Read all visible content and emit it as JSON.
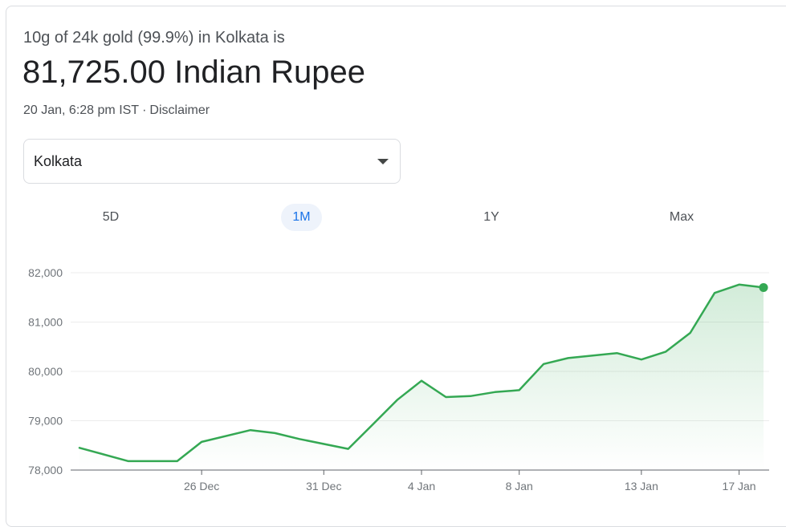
{
  "header": {
    "subtitle": "10g of 24k gold (99.9%) in Kolkata is",
    "price": "81,725.00 Indian Rupee",
    "timestamp": "20 Jan, 6:28 pm IST",
    "separator": "·",
    "disclaimer": "Disclaimer"
  },
  "location_select": {
    "value": "Kolkata"
  },
  "range_tabs": [
    {
      "label": "5D",
      "active": false
    },
    {
      "label": "1M",
      "active": true
    },
    {
      "label": "1Y",
      "active": false
    },
    {
      "label": "Max",
      "active": false
    }
  ],
  "colors": {
    "line": "#34a853",
    "accent": "#1a73e8",
    "grid": "#ececec"
  },
  "chart_data": {
    "type": "area",
    "series": [
      {
        "x": [
          "2023-12-21",
          "2023-12-23",
          "2023-12-25",
          "2023-12-26",
          "2023-12-28",
          "2023-12-29",
          "2023-12-30",
          "2024-01-01",
          "2024-01-02",
          "2024-01-03",
          "2024-01-04",
          "2024-01-05",
          "2024-01-06",
          "2024-01-07",
          "2024-01-08",
          "2024-01-09",
          "2024-01-10",
          "2024-01-12",
          "2024-01-13",
          "2024-01-14",
          "2024-01-15",
          "2024-01-16",
          "2024-01-17",
          "2024-01-18"
        ],
        "values": [
          78450,
          78180,
          78180,
          78570,
          78810,
          78750,
          78630,
          78430,
          78920,
          79420,
          79810,
          79480,
          79500,
          79580,
          79620,
          80150,
          80270,
          80370,
          80240,
          80400,
          80780,
          81590,
          81760,
          81700
        ]
      }
    ],
    "ylim": [
      78000,
      82000
    ],
    "yticks": [
      "78,000",
      "79,000",
      "80,000",
      "81,000",
      "82,000"
    ],
    "yticks_values": [
      78000,
      79000,
      80000,
      81000,
      82000
    ],
    "xticks": [
      {
        "label": "26 Dec",
        "date": "2023-12-26"
      },
      {
        "label": "31 Dec",
        "date": "2023-12-31"
      },
      {
        "label": "4 Jan",
        "date": "2024-01-04"
      },
      {
        "label": "8 Jan",
        "date": "2024-01-08"
      },
      {
        "label": "13 Jan",
        "date": "2024-01-13"
      },
      {
        "label": "17 Jan",
        "date": "2024-01-17"
      }
    ],
    "grid": true,
    "last_point_marker": true
  }
}
